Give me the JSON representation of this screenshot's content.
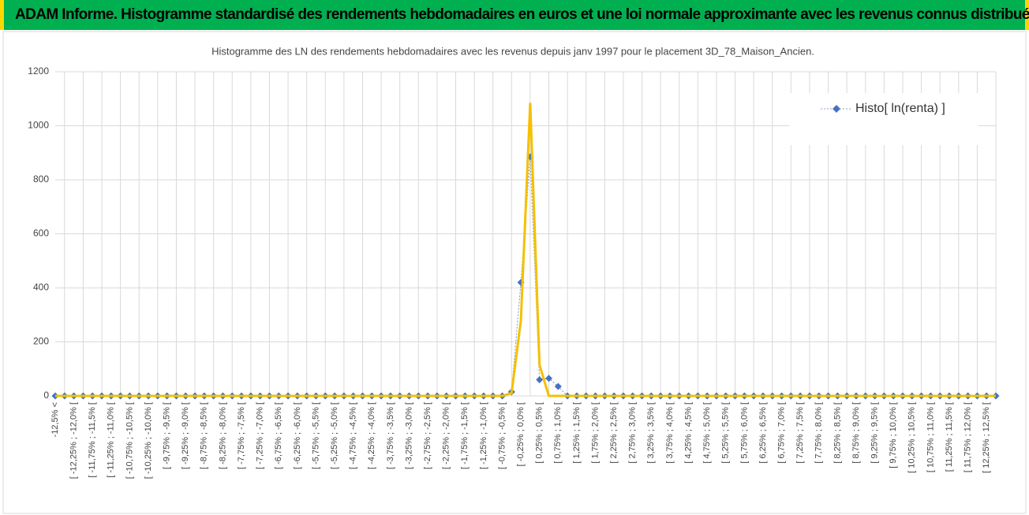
{
  "header": {
    "title": "ADAM Informe. Histogramme standardisé des rendements hebdomadaires en euros et une loi normale approximante avec les revenus connus distribués"
  },
  "chart_data": {
    "type": "line",
    "title": "Histogramme des LN des rendements hebdomadaires avec les revenus depuis janv 1997 pour le placement 3D_78_Maison_Ancien.",
    "categories": [
      "-12,5% <",
      null,
      "[ -12,25% ; -12,0% [",
      null,
      "[ -11,75% ; -11,5% [",
      null,
      "[ -11,25% ; -11,0% [",
      null,
      "[ -10,75% ; -10,5% [",
      null,
      "[ -10,25% ; -10,0% [",
      null,
      "[ -9,75% ; -9,5% [",
      null,
      "[ -9,25% ; -9,0% [",
      null,
      "[ -8,75% ; -8,5% [",
      null,
      "[ -8,25% ; -8,0% [",
      null,
      "[ -7,75% ; -7,5% [",
      null,
      "[ -7,25% ; -7,0% [",
      null,
      "[ -6,75% ; -6,5% [",
      null,
      "[ -6,25% ; -6,0% [",
      null,
      "[ -5,75% ; -5,5% [",
      null,
      "[ -5,25% ; -5,0% [",
      null,
      "[ -4,75% ; -4,5% [",
      null,
      "[ -4,25% ; -4,0% [",
      null,
      "[ -3,75% ; -3,5% [",
      null,
      "[ -3,25% ; -3,0% [",
      null,
      "[ -2,75% ; -2,5% [",
      null,
      "[ -2,25% ; -2,0% [",
      null,
      "[ -1,75% ; -1,5% [",
      null,
      "[ -1,25% ; -1,0% [",
      null,
      "[ -0,75% ; -0,5% [",
      null,
      "[ -0,25% ; 0,0% [",
      null,
      "[ 0,25% ; 0,5% [",
      null,
      "[ 0,75% ; 1,0% [",
      null,
      "[ 1,25% ; 1,5% [",
      null,
      "[ 1,75% ; 2,0% [",
      null,
      "[ 2,25% ; 2,5% [",
      null,
      "[ 2,75% ; 3,0% [",
      null,
      "[ 3,25% ; 3,5% [",
      null,
      "[ 3,75% ; 4,0% [",
      null,
      "[ 4,25% ; 4,5% [",
      null,
      "[ 4,75% ; 5,0% [",
      null,
      "[ 5,25% ; 5,5% [",
      null,
      "[ 5,75% ; 6,0% [",
      null,
      "[ 6,25% ; 6,5% [",
      null,
      "[ 6,75% ; 7,0% [",
      null,
      "[ 7,25% ; 7,5% [",
      null,
      "[ 7,75% ; 8,0% [",
      null,
      "[ 8,25% ; 8,5% [",
      null,
      "[ 8,75% ; 9,0% [",
      null,
      "[ 9,25% ; 9,5% [",
      null,
      "[ 9,75% ; 10,0% [",
      null,
      "[ 10,25% ; 10,5% [",
      null,
      "[ 10,75% ; 11,0% [",
      null,
      "[ 11,25% ; 11,5% [",
      null,
      "[ 11,75% ; 12,0% [",
      null,
      "[ 12,25% ; 12,5% [",
      null
    ],
    "series": [
      {
        "name": "Histo[ ln(renta) ]",
        "color": "#4472c4",
        "marker": "diamond",
        "line_style": "dotted",
        "values": [
          0,
          0,
          0,
          0,
          0,
          0,
          0,
          0,
          0,
          0,
          0,
          0,
          0,
          0,
          0,
          0,
          0,
          0,
          0,
          0,
          0,
          0,
          0,
          0,
          0,
          0,
          0,
          0,
          0,
          0,
          0,
          0,
          0,
          0,
          0,
          0,
          0,
          0,
          0,
          0,
          0,
          0,
          0,
          0,
          0,
          0,
          0,
          0,
          0,
          15,
          420,
          885,
          60,
          65,
          35,
          0,
          0,
          0,
          0,
          0,
          0,
          0,
          0,
          0,
          0,
          0,
          0,
          0,
          0,
          0,
          0,
          0,
          0,
          0,
          0,
          0,
          0,
          0,
          0,
          0,
          0,
          0,
          0,
          0,
          0,
          0,
          0,
          0,
          0,
          0,
          0,
          0,
          0,
          0,
          0,
          0,
          0,
          0,
          0,
          0,
          0,
          0
        ]
      },
      {
        "color": "#f5c000",
        "line_style": "solid",
        "values": [
          0,
          0,
          0,
          0,
          0,
          0,
          0,
          0,
          0,
          0,
          0,
          0,
          0,
          0,
          0,
          0,
          0,
          0,
          0,
          0,
          0,
          0,
          0,
          0,
          0,
          0,
          0,
          0,
          0,
          0,
          0,
          0,
          0,
          0,
          0,
          0,
          0,
          0,
          0,
          0,
          0,
          0,
          0,
          0,
          0,
          0,
          0,
          0,
          0,
          10,
          280,
          1085,
          115,
          0,
          0,
          0,
          0,
          0,
          0,
          0,
          0,
          0,
          0,
          0,
          0,
          0,
          0,
          0,
          0,
          0,
          0,
          0,
          0,
          0,
          0,
          0,
          0,
          0,
          0,
          0,
          0,
          0,
          0,
          0,
          0,
          0,
          0,
          0,
          0,
          0,
          0,
          0,
          0,
          0,
          0,
          0,
          0,
          0,
          0,
          0,
          0,
          0
        ]
      }
    ],
    "ylim": [
      0,
      1200
    ],
    "yticks": [
      0,
      200,
      400,
      600,
      800,
      1000,
      1200
    ],
    "grid": true,
    "legend": "top-right"
  }
}
